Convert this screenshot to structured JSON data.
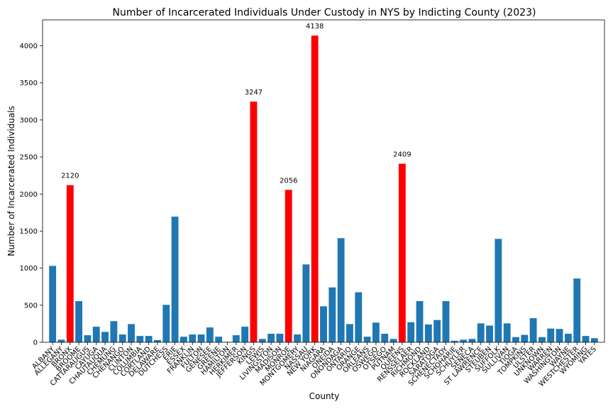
{
  "chart_data": {
    "type": "bar",
    "title": "Number of Incarcerated Individuals Under Custody in NYS by Indicting County (2023)",
    "xlabel": "County",
    "ylabel": "Number of Incarcerated Individuals",
    "ylim": [
      0,
      4350
    ],
    "yticks": [
      0,
      500,
      1000,
      1500,
      2000,
      2500,
      3000,
      3500,
      4000
    ],
    "grid": false,
    "colors": {
      "default": "#1f77b4",
      "highlight": "#ff0000"
    },
    "categories": [
      "ALBANY",
      "ALLEGANY",
      "BRONX",
      "BROOME",
      "CATTARAUGUS",
      "CAYUGA",
      "CHAUTAUQUA",
      "CHEMUNG",
      "CHENANGO",
      "CLINTON",
      "COLUMBIA",
      "CORTLAND",
      "DELAWARE",
      "DUTCHESS",
      "ERIE",
      "ESSEX",
      "FRANKLIN",
      "FULTON",
      "GENESEE",
      "GREENE",
      "HAMILTON",
      "HERKIMER",
      "JEFFERSON",
      "KINGS",
      "LEWIS",
      "LIVINGSTON",
      "MADISON",
      "MONROE",
      "MONTGOMERY",
      "NASSAU",
      "NEW YORK",
      "NIAGARA",
      "ONEIDA",
      "ONONDAGA",
      "ONTARIO",
      "ORANGE",
      "ORLEANS",
      "OSWEGO",
      "OTSEGO",
      "PUTNAM",
      "QUEENS",
      "RENSSELAER",
      "RICHMOND",
      "ROCKLAND",
      "SARATOGA",
      "SCHENECTADY",
      "SCHOHARIE",
      "SCHUYLER",
      "SENECA",
      "ST LAWRENCE",
      "STEUBEN",
      "SUFFOLK",
      "SULLIVAN",
      "TIOGA",
      "TOMPKINS",
      "ULSTER",
      "UNKNOWN",
      "WARREN",
      "WASHINGTON",
      "WAYNE",
      "WESTCHESTER",
      "WYOMING",
      "YATES"
    ],
    "values": [
      1030,
      35,
      2120,
      555,
      95,
      210,
      140,
      285,
      105,
      245,
      85,
      85,
      30,
      505,
      1695,
      75,
      105,
      105,
      200,
      75,
      5,
      95,
      210,
      3247,
      45,
      115,
      115,
      2056,
      105,
      1050,
      4138,
      485,
      740,
      1405,
      245,
      675,
      75,
      265,
      115,
      45,
      2409,
      270,
      555,
      240,
      300,
      555,
      20,
      35,
      45,
      255,
      225,
      1395,
      255,
      70,
      100,
      325,
      70,
      185,
      180,
      115,
      860,
      85,
      55
    ],
    "highlighted": [
      "BRONX",
      "KINGS",
      "MONROE",
      "NEW YORK",
      "QUEENS"
    ],
    "data_labels": [
      {
        "category": "BRONX",
        "text": "2120"
      },
      {
        "category": "KINGS",
        "text": "3247"
      },
      {
        "category": "MONROE",
        "text": "2056"
      },
      {
        "category": "NEW YORK",
        "text": "4138"
      },
      {
        "category": "QUEENS",
        "text": "2409"
      }
    ]
  }
}
